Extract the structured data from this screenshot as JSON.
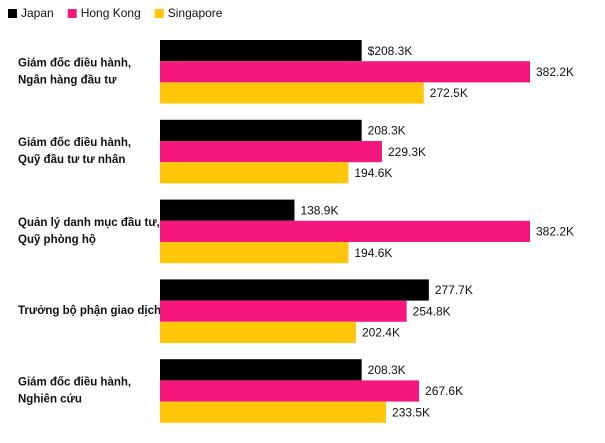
{
  "chart_data": {
    "type": "bar",
    "orientation": "horizontal",
    "categories": [
      [
        "Giám đốc điều hành,",
        "Ngân hàng đầu tư"
      ],
      [
        "Giám đốc điều hành,",
        "Quỹ đầu tư tư nhân"
      ],
      [
        "Quản lý danh mục đầu tư,",
        "Quỹ phòng hộ"
      ],
      [
        "Trưởng bộ phận giao dịch"
      ],
      [
        "Giám đốc điều hành,",
        "Nghiên cứu"
      ]
    ],
    "series": [
      {
        "name": "Japan",
        "color": "#000000",
        "values": [
          208.3,
          208.3,
          138.9,
          277.7,
          208.3
        ],
        "value_labels": [
          "$208.3K",
          "208.3K",
          "138.9K",
          "277.7K",
          "208.3K"
        ]
      },
      {
        "name": "Hong Kong",
        "color": "#f5167e",
        "values": [
          382.2,
          229.3,
          382.2,
          254.8,
          267.6
        ],
        "value_labels": [
          "382.2K",
          "229.3K",
          "382.2K",
          "254.8K",
          "267.6K"
        ]
      },
      {
        "name": "Singapore",
        "color": "#ffc60a",
        "values": [
          272.5,
          194.6,
          194.6,
          202.4,
          233.5
        ],
        "value_labels": [
          "272.5K",
          "194.6K",
          "194.6K",
          "202.4K",
          "233.5K"
        ]
      }
    ]
  }
}
